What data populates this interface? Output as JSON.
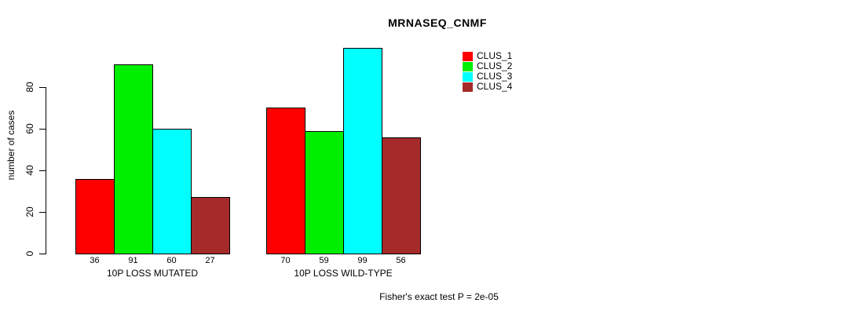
{
  "title": "MRNASEQ_CNMF",
  "footer": {
    "text": "Fisher's exact test P = 2e-05"
  },
  "chart_data": {
    "type": "bar",
    "title": "MRNASEQ_CNMF",
    "xlabel": "",
    "ylabel": "number of cases",
    "ylim": [
      0,
      80
    ],
    "yticks": [
      0,
      20,
      40,
      60,
      80
    ],
    "grid": false,
    "legend_position": "top-right",
    "bar_value_labels_shown": true,
    "categories": [
      "10P LOSS MUTATED",
      "10P LOSS WILD-TYPE"
    ],
    "series": [
      {
        "name": "CLUS_1",
        "color": "#ff0000",
        "values": [
          36,
          70
        ]
      },
      {
        "name": "CLUS_2",
        "color": "#00ee00",
        "values": [
          91,
          59
        ]
      },
      {
        "name": "CLUS_3",
        "color": "#00ffff",
        "values": [
          60,
          99
        ]
      },
      {
        "name": "CLUS_4",
        "color": "#a52a2a",
        "values": [
          27,
          56
        ]
      }
    ],
    "annotation": "Fisher's exact test P = 2e-05"
  }
}
